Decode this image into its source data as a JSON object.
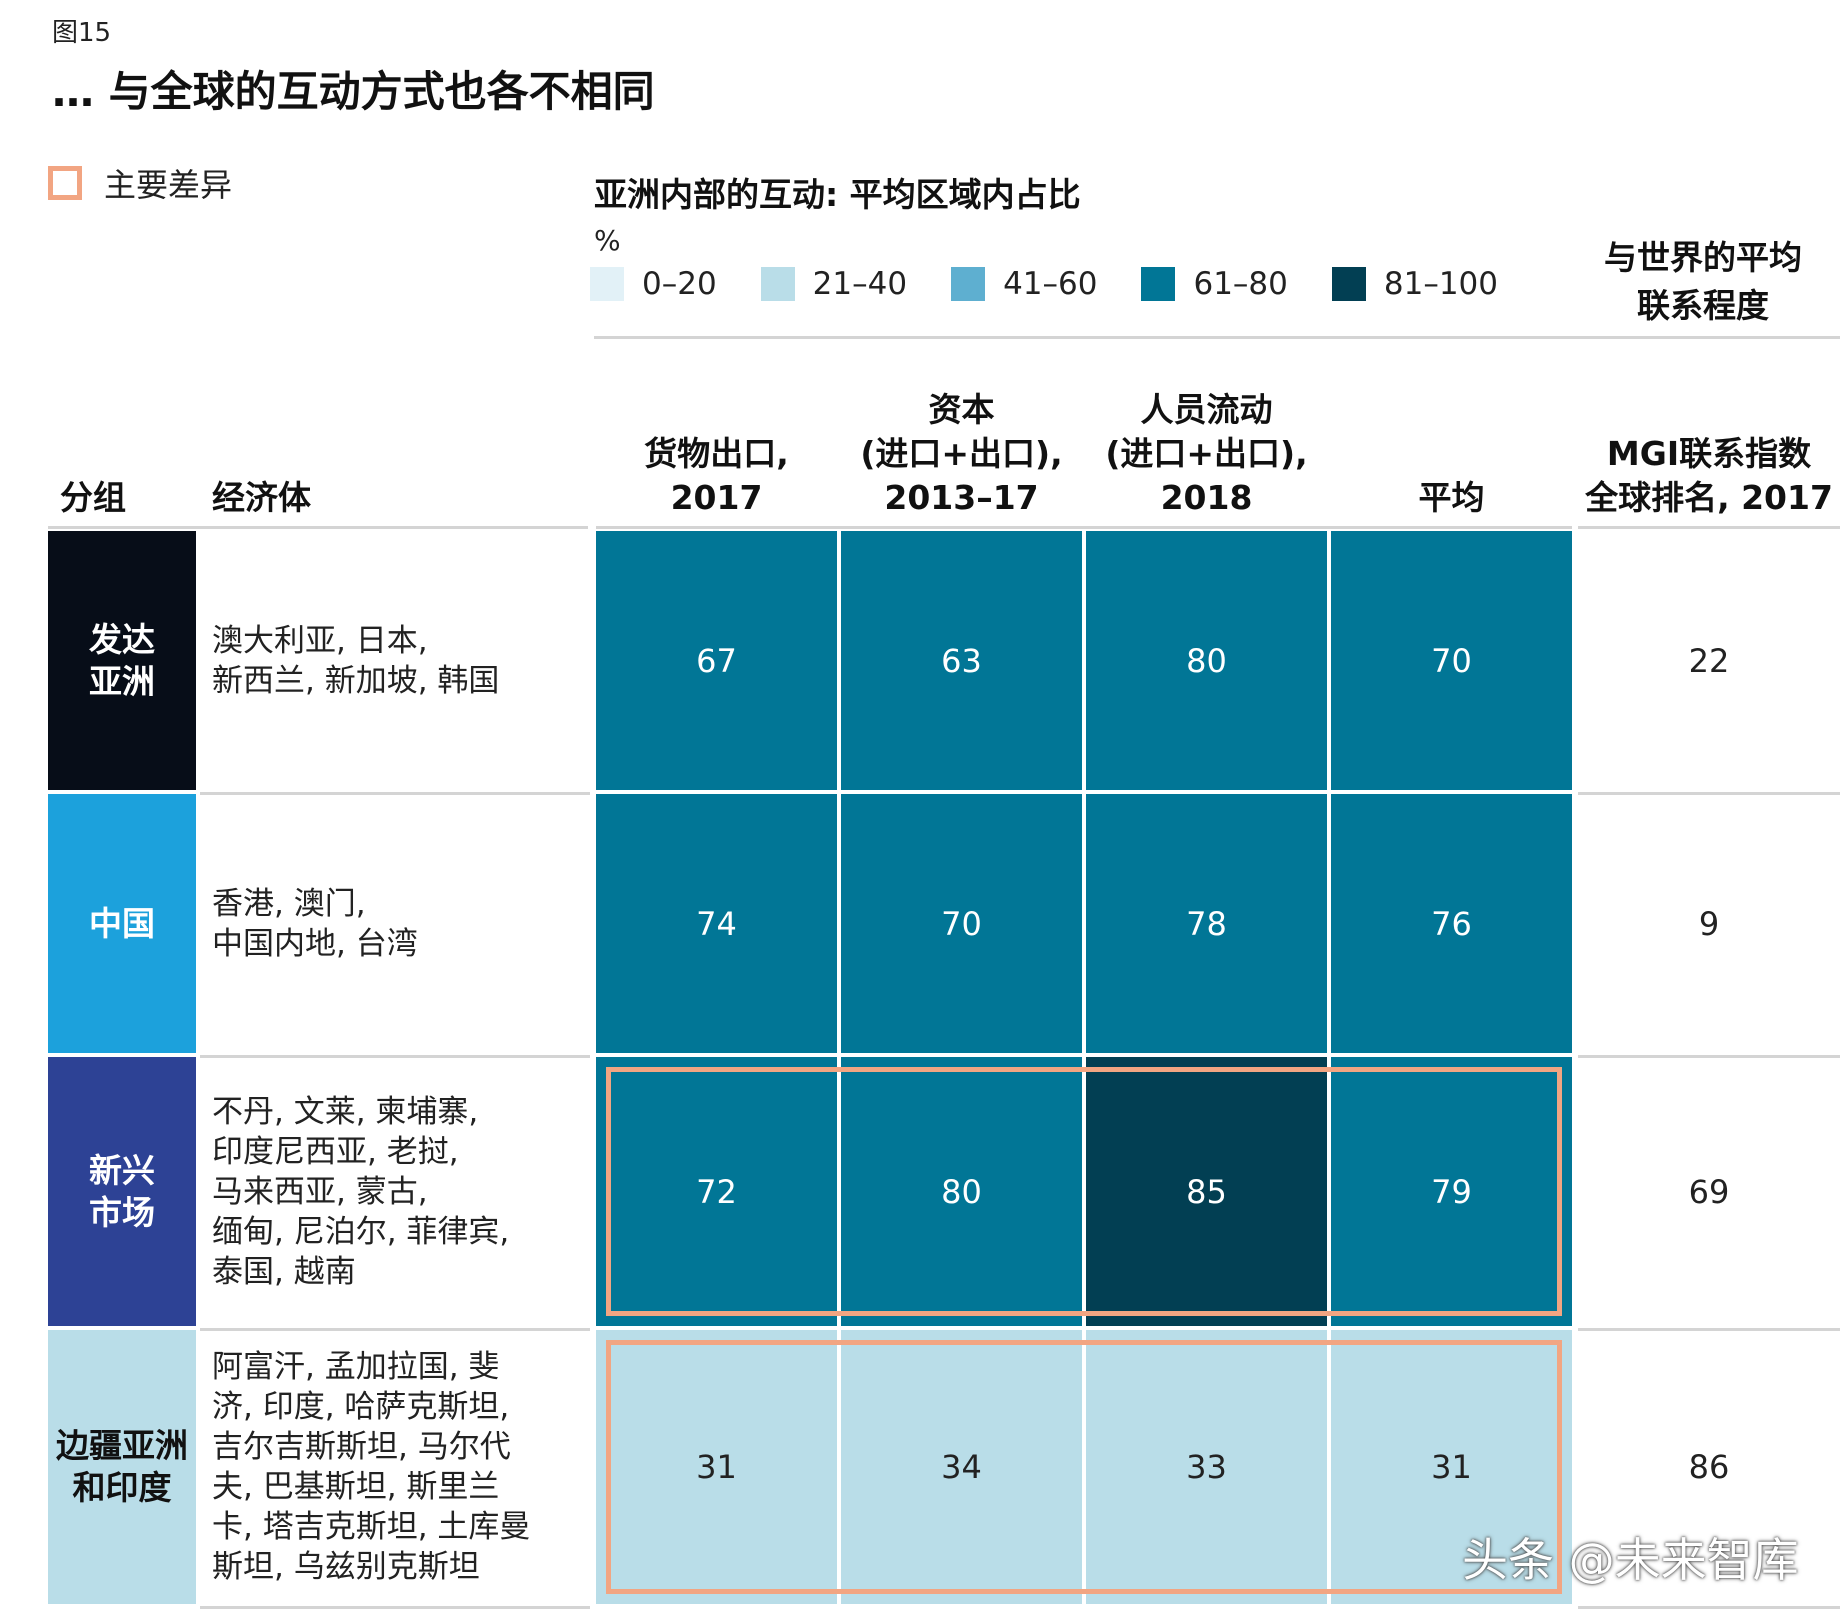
{
  "figure_label": "图15",
  "title": "… 与全球的互动方式也各不相同",
  "key": {
    "label": "主要差异",
    "color": "#f2a582"
  },
  "legend": {
    "title": "亚洲内部的互动: 平均区域内占比",
    "unit": "%",
    "items": [
      {
        "label": "0–20",
        "color": "#e2f1f7"
      },
      {
        "label": "21–40",
        "color": "#b9dde8"
      },
      {
        "label": "41–60",
        "color": "#5eafd0"
      },
      {
        "label": "61–80",
        "color": "#017696"
      },
      {
        "label": "81–100",
        "color": "#023f53"
      }
    ]
  },
  "world_heading": [
    "与世界的平均",
    "联系程度"
  ],
  "columns": {
    "group": "分组",
    "economies": "经济体",
    "goods": [
      "货物出口,",
      "2017"
    ],
    "capital": [
      "资本",
      "(进口+出口),",
      "2013–17"
    ],
    "people": [
      "人员流动",
      "(进口+出口),",
      "2018"
    ],
    "average": [
      "平均"
    ],
    "rank": [
      "MGI联系指数",
      "全球排名, 2017"
    ]
  },
  "chart_data": {
    "type": "table",
    "title": "亚洲内部的互动: 平均区域内占比",
    "unit": "%",
    "columns": [
      "货物出口, 2017",
      "资本 (进口+出口), 2013–17",
      "人员流动 (进口+出口), 2018",
      "平均",
      "MGI联系指数 全球排名, 2017"
    ],
    "rows": [
      {
        "group_lines": [
          "发达",
          "亚洲"
        ],
        "group_color": "#070d18",
        "group_text_color": "#ffffff",
        "economies_lines": [
          "澳大利亚, 日本,",
          "新西兰, 新加坡, 韩国"
        ],
        "values": [
          67,
          63,
          80,
          70
        ],
        "rank": 22,
        "highlight": false
      },
      {
        "group_lines": [
          "中国"
        ],
        "group_color": "#1ca1dc",
        "group_text_color": "#ffffff",
        "economies_lines": [
          "香港, 澳门,",
          "中国内地, 台湾"
        ],
        "values": [
          74,
          70,
          78,
          76
        ],
        "rank": 9,
        "highlight": false
      },
      {
        "group_lines": [
          "新兴",
          "市场"
        ],
        "group_color": "#2d4295",
        "group_text_color": "#ffffff",
        "economies_lines": [
          "不丹, 文莱, 柬埔寨,",
          "印度尼西亚, 老挝,",
          "马来西亚, 蒙古,",
          "缅甸, 尼泊尔, 菲律宾,",
          "泰国, 越南"
        ],
        "values": [
          72,
          80,
          85,
          79
        ],
        "rank": 69,
        "highlight": true
      },
      {
        "group_lines": [
          "边疆亚洲",
          "和印度"
        ],
        "group_color": "#b9dde8",
        "group_text_color": "#111111",
        "economies_lines": [
          "阿富汗, 孟加拉国, 斐",
          "济, 印度, 哈萨克斯坦,",
          "吉尔吉斯斯坦, 马尔代",
          "夫, 巴基斯坦, 斯里兰",
          "卡, 塔吉克斯坦, 土库曼",
          "斯坦, 乌兹别克斯坦"
        ],
        "values": [
          31,
          34,
          33,
          31
        ],
        "rank": 86,
        "highlight": true
      }
    ]
  },
  "watermark": "头条 @未来智库"
}
